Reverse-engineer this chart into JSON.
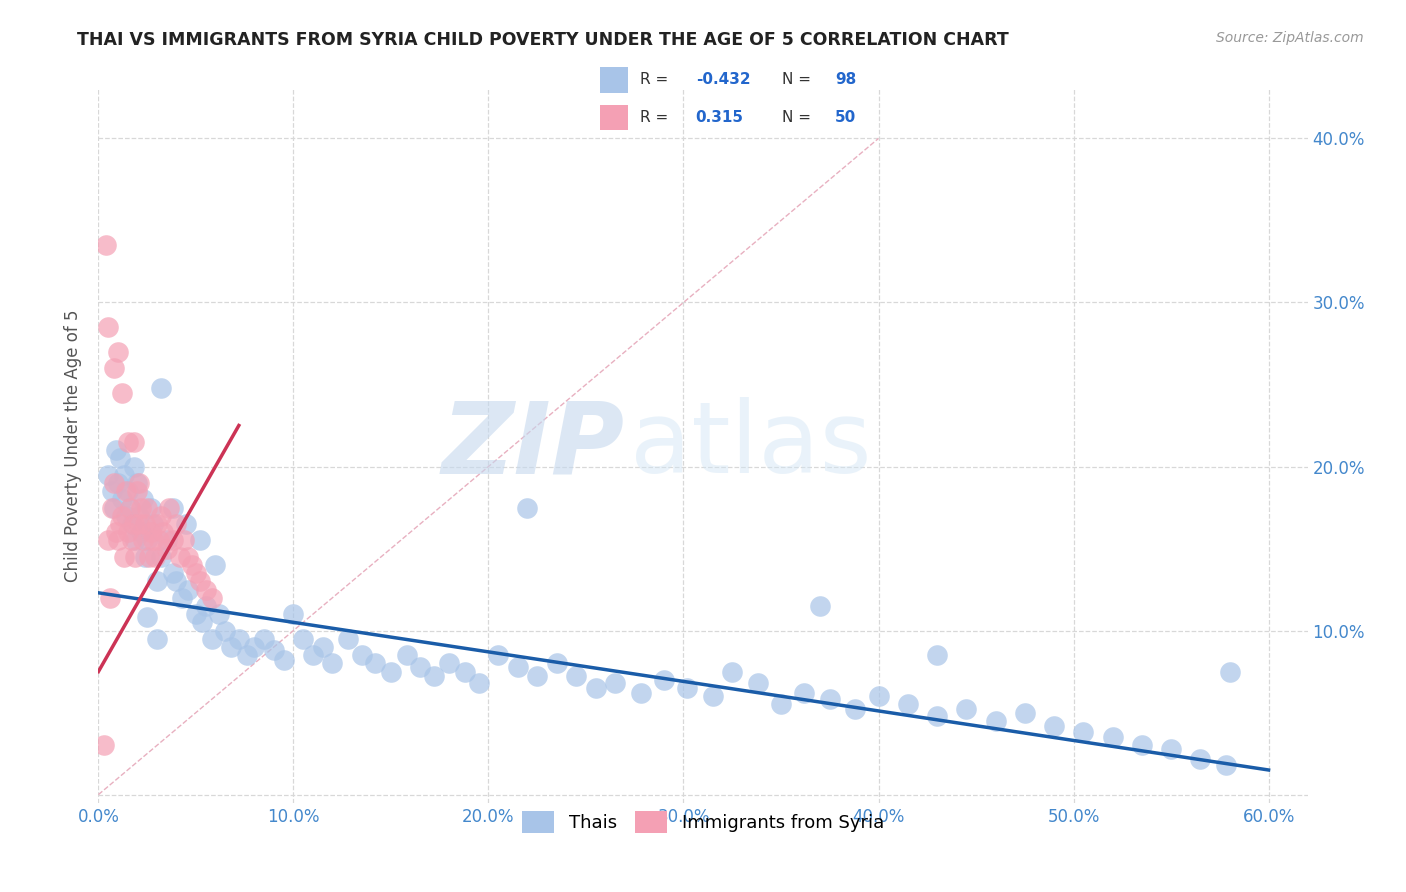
{
  "title": "THAI VS IMMIGRANTS FROM SYRIA CHILD POVERTY UNDER THE AGE OF 5 CORRELATION CHART",
  "source": "Source: ZipAtlas.com",
  "ylabel": "Child Poverty Under the Age of 5",
  "xlim": [
    0.0,
    0.62
  ],
  "ylim": [
    -0.005,
    0.43
  ],
  "xticks": [
    0.0,
    0.1,
    0.2,
    0.3,
    0.4,
    0.5,
    0.6
  ],
  "yticks": [
    0.0,
    0.1,
    0.2,
    0.3,
    0.4
  ],
  "xticklabels": [
    "0.0%",
    "10.0%",
    "20.0%",
    "30.0%",
    "40.0%",
    "50.0%",
    "60.0%"
  ],
  "yticklabels_right": [
    "",
    "10.0%",
    "20.0%",
    "30.0%",
    "40.0%"
  ],
  "thai_color": "#a8c4e8",
  "syria_color": "#f4a0b4",
  "thai_line_color": "#1a5ca8",
  "syria_line_color": "#cc3355",
  "legend_thai_label": "Thais",
  "legend_syria_label": "Immigrants from Syria",
  "watermark_zip": "ZIP",
  "watermark_atlas": "atlas",
  "background_color": "#ffffff",
  "grid_color": "#d8d8d8",
  "title_color": "#222222",
  "axis_label_color": "#555555",
  "tick_color": "#4488cc",
  "thai_R": "-0.432",
  "thai_N": "98",
  "syria_R": "0.315",
  "syria_N": "50",
  "thai_trend_x": [
    0.0,
    0.6
  ],
  "thai_trend_y": [
    0.123,
    0.015
  ],
  "syria_trend_x": [
    0.0,
    0.072
  ],
  "syria_trend_y": [
    0.075,
    0.225
  ],
  "diag_line_x": [
    0.0,
    0.4
  ],
  "diag_line_y": [
    0.0,
    0.4
  ],
  "thai_scatter_x": [
    0.005,
    0.007,
    0.008,
    0.009,
    0.01,
    0.011,
    0.012,
    0.013,
    0.014,
    0.015,
    0.016,
    0.017,
    0.018,
    0.019,
    0.02,
    0.021,
    0.022,
    0.023,
    0.024,
    0.025,
    0.027,
    0.028,
    0.03,
    0.032,
    0.035,
    0.038,
    0.04,
    0.043,
    0.046,
    0.05,
    0.053,
    0.055,
    0.058,
    0.062,
    0.065,
    0.068,
    0.072,
    0.076,
    0.08,
    0.085,
    0.09,
    0.095,
    0.1,
    0.105,
    0.11,
    0.115,
    0.12,
    0.128,
    0.135,
    0.142,
    0.15,
    0.158,
    0.165,
    0.172,
    0.18,
    0.188,
    0.195,
    0.205,
    0.215,
    0.225,
    0.235,
    0.245,
    0.255,
    0.265,
    0.278,
    0.29,
    0.302,
    0.315,
    0.325,
    0.338,
    0.35,
    0.362,
    0.375,
    0.388,
    0.4,
    0.415,
    0.43,
    0.445,
    0.46,
    0.475,
    0.49,
    0.505,
    0.52,
    0.535,
    0.55,
    0.565,
    0.578,
    0.032,
    0.038,
    0.045,
    0.052,
    0.06,
    0.025,
    0.03,
    0.22,
    0.37,
    0.43,
    0.58
  ],
  "thai_scatter_y": [
    0.195,
    0.185,
    0.175,
    0.21,
    0.19,
    0.205,
    0.18,
    0.195,
    0.17,
    0.185,
    0.175,
    0.165,
    0.2,
    0.155,
    0.19,
    0.17,
    0.16,
    0.18,
    0.145,
    0.155,
    0.175,
    0.165,
    0.13,
    0.145,
    0.155,
    0.135,
    0.13,
    0.12,
    0.125,
    0.11,
    0.105,
    0.115,
    0.095,
    0.11,
    0.1,
    0.09,
    0.095,
    0.085,
    0.09,
    0.095,
    0.088,
    0.082,
    0.11,
    0.095,
    0.085,
    0.09,
    0.08,
    0.095,
    0.085,
    0.08,
    0.075,
    0.085,
    0.078,
    0.072,
    0.08,
    0.075,
    0.068,
    0.085,
    0.078,
    0.072,
    0.08,
    0.072,
    0.065,
    0.068,
    0.062,
    0.07,
    0.065,
    0.06,
    0.075,
    0.068,
    0.055,
    0.062,
    0.058,
    0.052,
    0.06,
    0.055,
    0.048,
    0.052,
    0.045,
    0.05,
    0.042,
    0.038,
    0.035,
    0.03,
    0.028,
    0.022,
    0.018,
    0.248,
    0.175,
    0.165,
    0.155,
    0.14,
    0.108,
    0.095,
    0.175,
    0.115,
    0.085,
    0.075
  ],
  "syria_scatter_x": [
    0.003,
    0.005,
    0.006,
    0.007,
    0.008,
    0.009,
    0.01,
    0.011,
    0.012,
    0.013,
    0.014,
    0.015,
    0.016,
    0.017,
    0.018,
    0.019,
    0.02,
    0.021,
    0.022,
    0.023,
    0.024,
    0.025,
    0.026,
    0.027,
    0.028,
    0.029,
    0.03,
    0.031,
    0.032,
    0.033,
    0.035,
    0.036,
    0.038,
    0.04,
    0.042,
    0.044,
    0.046,
    0.048,
    0.05,
    0.052,
    0.055,
    0.058,
    0.005,
    0.008,
    0.01,
    0.012,
    0.015,
    0.018,
    0.021,
    0.004
  ],
  "syria_scatter_y": [
    0.03,
    0.155,
    0.12,
    0.175,
    0.19,
    0.16,
    0.155,
    0.165,
    0.17,
    0.145,
    0.185,
    0.16,
    0.175,
    0.155,
    0.165,
    0.145,
    0.185,
    0.165,
    0.175,
    0.155,
    0.165,
    0.175,
    0.145,
    0.16,
    0.155,
    0.145,
    0.165,
    0.155,
    0.17,
    0.16,
    0.15,
    0.175,
    0.155,
    0.165,
    0.145,
    0.155,
    0.145,
    0.14,
    0.135,
    0.13,
    0.125,
    0.12,
    0.285,
    0.26,
    0.27,
    0.245,
    0.215,
    0.215,
    0.19,
    0.335
  ]
}
